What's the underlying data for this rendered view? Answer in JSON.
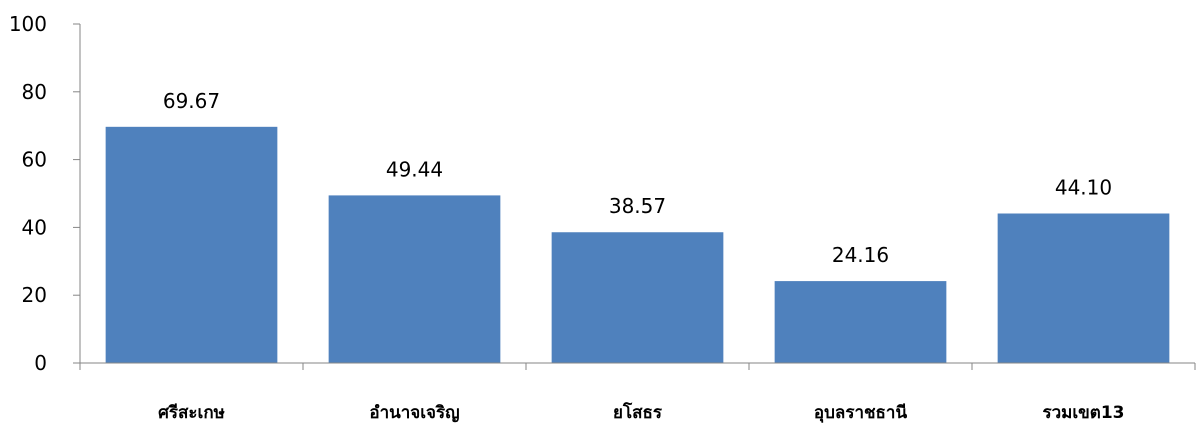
{
  "chart_data": {
    "type": "bar",
    "categories": [
      "ศรีสะเกษ",
      "อำนาจเจริญ",
      "ยโสธร",
      "อุบลราชธานี",
      "รวมเขต13"
    ],
    "values": [
      69.67,
      49.44,
      38.57,
      24.16,
      44.1
    ],
    "value_labels": [
      "69.67",
      "49.44",
      "38.57",
      "24.16",
      "44.10"
    ],
    "ylim": [
      0,
      100
    ],
    "yticks": [
      0,
      20,
      40,
      60,
      80,
      100
    ],
    "grid": false,
    "legend": "none",
    "title": "",
    "xlabel": "",
    "ylabel": "",
    "colors": {
      "bar": "#4F81BD",
      "axis": "#868686"
    }
  }
}
